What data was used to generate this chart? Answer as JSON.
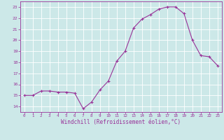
{
  "x": [
    0,
    1,
    2,
    3,
    4,
    5,
    6,
    7,
    8,
    9,
    10,
    11,
    12,
    13,
    14,
    15,
    16,
    17,
    18,
    19,
    20,
    21,
    22,
    23
  ],
  "y": [
    15.0,
    15.0,
    15.4,
    15.4,
    15.3,
    15.3,
    15.2,
    13.8,
    14.4,
    15.5,
    16.3,
    18.1,
    19.0,
    21.1,
    21.9,
    22.3,
    22.8,
    23.0,
    23.0,
    22.4,
    20.0,
    18.6,
    18.5,
    17.7
  ],
  "line_color": "#993399",
  "marker": "+",
  "marker_size": 3,
  "bg_color": "#cce8e8",
  "grid_color": "#ffffff",
  "xlabel": "Windchill (Refroidissement éolien,°C)",
  "xlabel_color": "#993399",
  "tick_color": "#993399",
  "ylabel_ticks": [
    14,
    15,
    16,
    17,
    18,
    19,
    20,
    21,
    22,
    23
  ],
  "xlim": [
    -0.5,
    23.5
  ],
  "ylim": [
    13.5,
    23.5
  ],
  "title": ""
}
